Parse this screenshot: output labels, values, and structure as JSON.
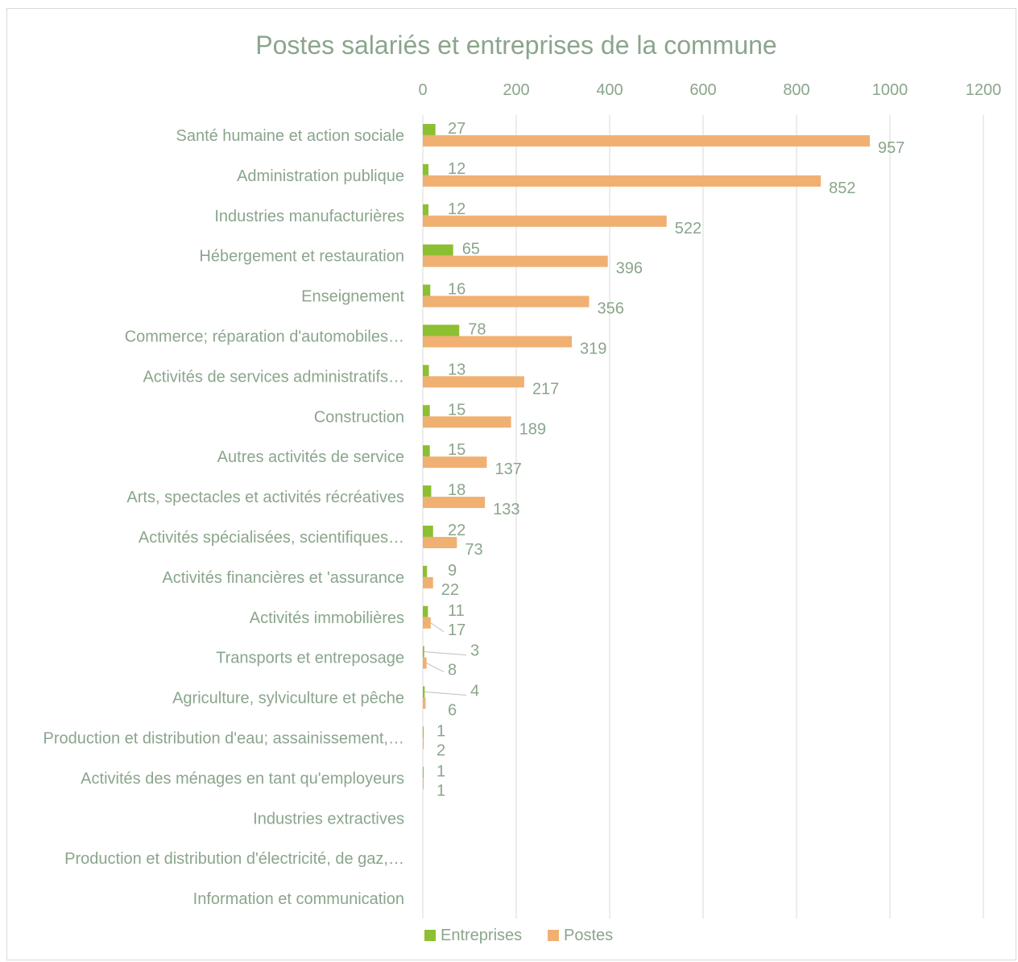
{
  "chart_data": {
    "type": "bar",
    "orientation": "horizontal",
    "title": "Postes salariés et entreprises de la commune",
    "x_axis_position": "top",
    "xlim": [
      0,
      1200
    ],
    "x_ticks": [
      "0",
      "200",
      "400",
      "600",
      "800",
      "1000",
      "1200"
    ],
    "grid": true,
    "legend_position": "bottom",
    "categories": [
      "Santé humaine et action sociale",
      "Administration publique",
      "Industries manufacturières",
      "Hébergement et restauration",
      "Enseignement",
      "Commerce; réparation d'automobiles…",
      "Activités de services administratifs…",
      "Construction",
      "Autres activités de service",
      "Arts, spectacles et activités récréatives",
      "Activités spécialisées, scientifiques…",
      "Activités financières et 'assurance",
      "Activités immobilières",
      "Transports et entreposage",
      "Agriculture, sylviculture et pêche",
      "Production et distribution d'eau; assainissement,…",
      "Activités des ménages en tant qu'employeurs",
      "Industries extractives",
      "Production et distribution d'électricité, de gaz,…",
      "Information et communication"
    ],
    "series": [
      {
        "name": "Entreprises",
        "color": "#8dbf32",
        "values": [
          27,
          12,
          12,
          65,
          16,
          78,
          13,
          15,
          15,
          18,
          22,
          9,
          11,
          3,
          4,
          1,
          1,
          null,
          null,
          null
        ]
      },
      {
        "name": "Postes",
        "color": "#f0b072",
        "values": [
          957,
          852,
          522,
          396,
          356,
          319,
          217,
          189,
          137,
          133,
          73,
          22,
          17,
          8,
          6,
          2,
          1,
          null,
          null,
          null
        ]
      }
    ]
  }
}
